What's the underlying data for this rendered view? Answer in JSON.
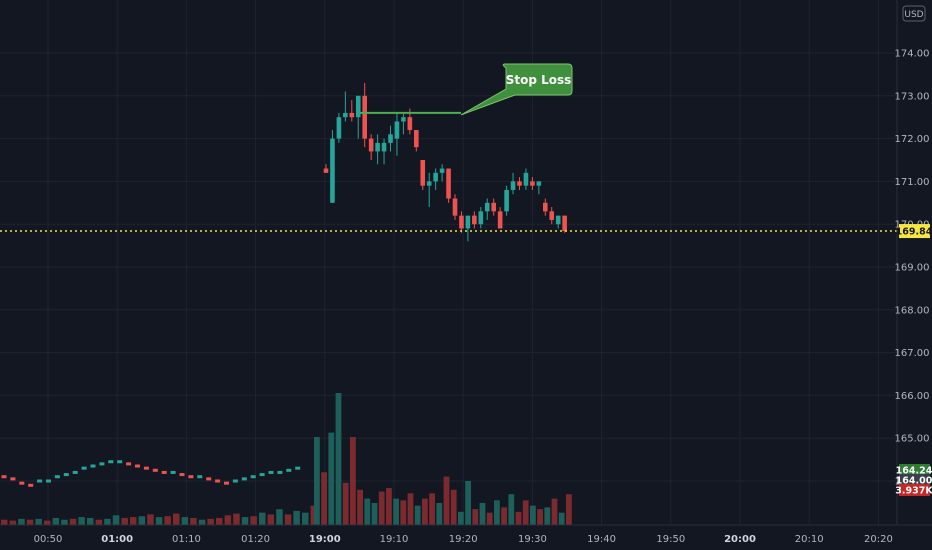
{
  "currency": "USD",
  "colors": {
    "background": "#131722",
    "grid": "#1f2330",
    "up": "#26a69a",
    "down": "#ef5350",
    "up_volume": "#1c5f5b",
    "down_volume": "#7b2a2e",
    "last_price": "#f5e642",
    "stop_loss": "#4caf50",
    "callout_fill": "#3f8f3d"
  },
  "annotation": {
    "label": "Stop Loss",
    "price": 172.6
  },
  "last_price_label": "169.84",
  "tags": [
    {
      "text": "164.24",
      "bg": "#2e7d32"
    },
    {
      "text": "164.00",
      "bg": "#3b3f4a"
    },
    {
      "text": "3.937K",
      "bg": "#c62828"
    }
  ],
  "chart_data": {
    "type": "candlestick",
    "title": "",
    "xlabel": "",
    "ylabel": "",
    "ylim": [
      163.0,
      175.0
    ],
    "price_ticks": [
      "174.00",
      "173.00",
      "172.00",
      "171.00",
      "170.00",
      "169.00",
      "168.00",
      "167.00",
      "166.00",
      "165.00",
      "164.00"
    ],
    "time_ticks": [
      {
        "label": "00:50",
        "bold": false
      },
      {
        "label": "01:00",
        "bold": true
      },
      {
        "label": "01:10",
        "bold": false
      },
      {
        "label": "01:20",
        "bold": false
      },
      {
        "label": "19:00",
        "bold": true
      },
      {
        "label": "19:10",
        "bold": false
      },
      {
        "label": "19:20",
        "bold": false
      },
      {
        "label": "19:30",
        "bold": false
      },
      {
        "label": "19:40",
        "bold": false
      },
      {
        "label": "19:50",
        "bold": false
      },
      {
        "label": "20:00",
        "bold": true
      },
      {
        "label": "20:10",
        "bold": false
      },
      {
        "label": "20:20",
        "bold": false
      }
    ],
    "last_price": 169.84,
    "stop_loss": 172.6,
    "candles": [
      {
        "o": 171.3,
        "h": 171.4,
        "l": 171.2,
        "c": 171.2
      },
      {
        "o": 170.5,
        "h": 172.2,
        "l": 170.5,
        "c": 172.0
      },
      {
        "o": 172.0,
        "h": 172.6,
        "l": 171.9,
        "c": 172.5
      },
      {
        "o": 172.5,
        "h": 173.1,
        "l": 172.4,
        "c": 172.6
      },
      {
        "o": 172.6,
        "h": 172.9,
        "l": 172.4,
        "c": 172.5
      },
      {
        "o": 172.5,
        "h": 173.0,
        "l": 172.0,
        "c": 173.0
      },
      {
        "o": 173.0,
        "h": 173.3,
        "l": 171.8,
        "c": 172.0
      },
      {
        "o": 172.0,
        "h": 172.1,
        "l": 171.5,
        "c": 171.7
      },
      {
        "o": 171.7,
        "h": 172.1,
        "l": 171.4,
        "c": 171.9
      },
      {
        "o": 171.7,
        "h": 172.0,
        "l": 171.4,
        "c": 171.9
      },
      {
        "o": 171.9,
        "h": 172.3,
        "l": 171.7,
        "c": 172.1
      },
      {
        "o": 172.0,
        "h": 172.6,
        "l": 171.6,
        "c": 172.4
      },
      {
        "o": 172.4,
        "h": 172.6,
        "l": 172.1,
        "c": 172.5
      },
      {
        "o": 172.5,
        "h": 172.7,
        "l": 172.1,
        "c": 172.2
      },
      {
        "o": 172.2,
        "h": 172.2,
        "l": 171.7,
        "c": 171.8
      },
      {
        "o": 171.5,
        "h": 171.5,
        "l": 170.8,
        "c": 170.9
      },
      {
        "o": 170.9,
        "h": 171.2,
        "l": 170.4,
        "c": 171.0
      },
      {
        "o": 171.0,
        "h": 171.3,
        "l": 170.8,
        "c": 171.2
      },
      {
        "o": 171.2,
        "h": 171.4,
        "l": 171.0,
        "c": 171.3
      },
      {
        "o": 171.3,
        "h": 171.3,
        "l": 170.5,
        "c": 170.6
      },
      {
        "o": 170.6,
        "h": 170.7,
        "l": 170.1,
        "c": 170.2
      },
      {
        "o": 170.2,
        "h": 170.3,
        "l": 169.8,
        "c": 169.9
      },
      {
        "o": 169.9,
        "h": 170.1,
        "l": 169.6,
        "c": 170.2
      },
      {
        "o": 170.2,
        "h": 170.3,
        "l": 169.9,
        "c": 170.0
      },
      {
        "o": 170.0,
        "h": 170.4,
        "l": 169.9,
        "c": 170.3
      },
      {
        "o": 170.3,
        "h": 170.6,
        "l": 170.1,
        "c": 170.5
      },
      {
        "o": 170.5,
        "h": 170.6,
        "l": 170.2,
        "c": 170.3
      },
      {
        "o": 170.3,
        "h": 170.4,
        "l": 169.9,
        "c": 169.9
      },
      {
        "o": 170.3,
        "h": 170.9,
        "l": 170.2,
        "c": 170.8
      },
      {
        "o": 170.8,
        "h": 171.2,
        "l": 170.7,
        "c": 171.0
      },
      {
        "o": 171.0,
        "h": 171.1,
        "l": 170.8,
        "c": 170.9
      },
      {
        "o": 170.9,
        "h": 171.3,
        "l": 170.8,
        "c": 171.2
      },
      {
        "o": 171.0,
        "h": 171.1,
        "l": 170.8,
        "c": 170.9
      },
      {
        "o": 170.9,
        "h": 171.0,
        "l": 170.7,
        "c": 171.0
      },
      {
        "o": 170.5,
        "h": 170.6,
        "l": 170.2,
        "c": 170.3
      },
      {
        "o": 170.3,
        "h": 170.4,
        "l": 170.0,
        "c": 170.1
      },
      {
        "o": 170.0,
        "h": 170.2,
        "l": 169.9,
        "c": 170.2
      },
      {
        "o": 170.2,
        "h": 170.2,
        "l": 169.8,
        "c": 169.84
      }
    ],
    "volume_bars": [
      {
        "v": 6,
        "up": false
      },
      {
        "v": 5,
        "up": false
      },
      {
        "v": 7,
        "up": true
      },
      {
        "v": 6,
        "up": false
      },
      {
        "v": 7,
        "up": true
      },
      {
        "v": 5,
        "up": false
      },
      {
        "v": 8,
        "up": true
      },
      {
        "v": 6,
        "up": true
      },
      {
        "v": 7,
        "up": false
      },
      {
        "v": 9,
        "up": true
      },
      {
        "v": 8,
        "up": true
      },
      {
        "v": 6,
        "up": false
      },
      {
        "v": 7,
        "up": true
      },
      {
        "v": 11,
        "up": true
      },
      {
        "v": 8,
        "up": false
      },
      {
        "v": 9,
        "up": false
      },
      {
        "v": 10,
        "up": true
      },
      {
        "v": 12,
        "up": false
      },
      {
        "v": 9,
        "up": true
      },
      {
        "v": 10,
        "up": false
      },
      {
        "v": 13,
        "up": false
      },
      {
        "v": 9,
        "up": true
      },
      {
        "v": 8,
        "up": false
      },
      {
        "v": 6,
        "up": true
      },
      {
        "v": 7,
        "up": false
      },
      {
        "v": 8,
        "up": false
      },
      {
        "v": 11,
        "up": false
      },
      {
        "v": 13,
        "up": false
      },
      {
        "v": 9,
        "up": true
      },
      {
        "v": 10,
        "up": false
      },
      {
        "v": 14,
        "up": true
      },
      {
        "v": 12,
        "up": false
      },
      {
        "v": 18,
        "up": true
      },
      {
        "v": 12,
        "up": false
      },
      {
        "v": 16,
        "up": true
      },
      {
        "v": 14,
        "up": true
      },
      {
        "v": 22,
        "up": false
      },
      {
        "v": 100,
        "up": true
      },
      {
        "v": 60,
        "up": false
      },
      {
        "v": 105,
        "up": true
      },
      {
        "v": 150,
        "up": true
      },
      {
        "v": 48,
        "up": false
      },
      {
        "v": 100,
        "up": false
      },
      {
        "v": 40,
        "up": false
      },
      {
        "v": 30,
        "up": true
      },
      {
        "v": 25,
        "up": true
      },
      {
        "v": 38,
        "up": false
      },
      {
        "v": 42,
        "up": false
      },
      {
        "v": 30,
        "up": true
      },
      {
        "v": 28,
        "up": false
      },
      {
        "v": 36,
        "up": false
      },
      {
        "v": 22,
        "up": true
      },
      {
        "v": 30,
        "up": false
      },
      {
        "v": 36,
        "up": false
      },
      {
        "v": 25,
        "up": true
      },
      {
        "v": 55,
        "up": false
      },
      {
        "v": 40,
        "up": false
      },
      {
        "v": 15,
        "up": true
      },
      {
        "v": 50,
        "up": true
      },
      {
        "v": 18,
        "up": false
      },
      {
        "v": 25,
        "up": true
      },
      {
        "v": 14,
        "up": false
      },
      {
        "v": 28,
        "up": true
      },
      {
        "v": 20,
        "up": false
      },
      {
        "v": 35,
        "up": true
      },
      {
        "v": 15,
        "up": false
      },
      {
        "v": 28,
        "up": false
      },
      {
        "v": 22,
        "up": true
      },
      {
        "v": 18,
        "up": false
      },
      {
        "v": 20,
        "up": true
      },
      {
        "v": 30,
        "up": false
      },
      {
        "v": 14,
        "up": true
      },
      {
        "v": 35,
        "up": false
      }
    ],
    "volume_overlay_line": [
      164.1,
      164.05,
      163.95,
      163.9,
      164.0,
      164.0,
      164.1,
      164.15,
      164.2,
      164.3,
      164.35,
      164.4,
      164.45,
      164.45,
      164.4,
      164.35,
      164.3,
      164.25,
      164.2,
      164.2,
      164.15,
      164.1,
      164.1,
      164.05,
      164.0,
      163.95,
      164.0,
      164.05,
      164.1,
      164.15,
      164.2,
      164.2,
      164.25,
      164.3
    ]
  }
}
